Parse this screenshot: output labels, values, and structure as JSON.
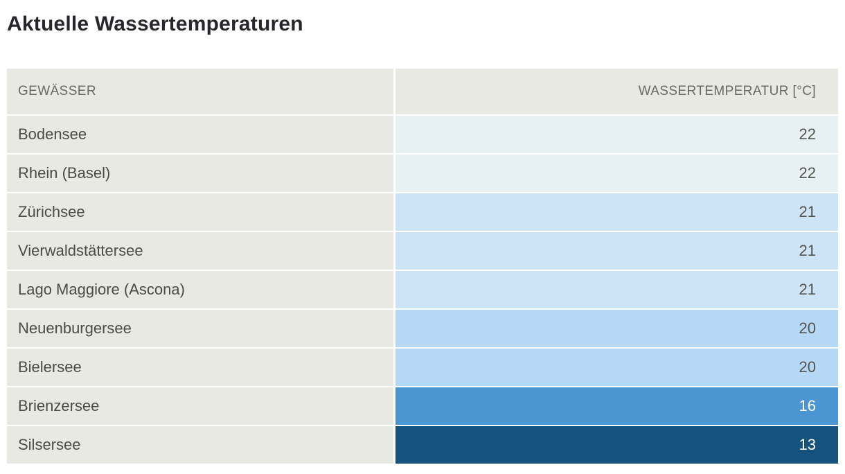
{
  "page": {
    "title": "Aktuelle Wassertemperaturen"
  },
  "table": {
    "headers": {
      "gewaesser": "GEWÄSSER",
      "temperatur": "WASSERTEMPERATUR [°C]"
    },
    "rows": [
      {
        "name": "Bodensee",
        "temp": "22",
        "bg": "#e7f1f4",
        "fg": "#53534e"
      },
      {
        "name": "Rhein (Basel)",
        "temp": "22",
        "bg": "#e7f1f4",
        "fg": "#53534e"
      },
      {
        "name": "Zürichsee",
        "temp": "21",
        "bg": "#cde4f6",
        "fg": "#53534e"
      },
      {
        "name": "Vierwaldstättersee",
        "temp": "21",
        "bg": "#cde4f6",
        "fg": "#53534e"
      },
      {
        "name": "Lago Maggiore (Ascona)",
        "temp": "21",
        "bg": "#cde4f6",
        "fg": "#53534e"
      },
      {
        "name": "Neuenburgersee",
        "temp": "20",
        "bg": "#b5d8f7",
        "fg": "#53534e"
      },
      {
        "name": "Bielersee",
        "temp": "20",
        "bg": "#b5d8f7",
        "fg": "#53534e"
      },
      {
        "name": "Brienzersee",
        "temp": "16",
        "bg": "#4b95d3",
        "fg": "#ffffff"
      },
      {
        "name": "Silsersee",
        "temp": "13",
        "bg": "#16527e",
        "fg": "#ffffff"
      }
    ],
    "cell_background_neutral": "#e9e9e3"
  },
  "chart_data": {
    "type": "table",
    "title": "Aktuelle Wassertemperaturen",
    "columns": [
      "GEWÄSSER",
      "WASSERTEMPERATUR [°C]"
    ],
    "rows": [
      [
        "Bodensee",
        22
      ],
      [
        "Rhein (Basel)",
        22
      ],
      [
        "Zürichsee",
        21
      ],
      [
        "Vierwaldstättersee",
        21
      ],
      [
        "Lago Maggiore (Ascona)",
        21
      ],
      [
        "Neuenburgersee",
        20
      ],
      [
        "Bielersee",
        20
      ],
      [
        "Brienzersee",
        16
      ],
      [
        "Silsersee",
        13
      ]
    ],
    "color_scale_note": "warmer water = lighter blue, colder water = darker blue",
    "value_unit": "°C"
  }
}
